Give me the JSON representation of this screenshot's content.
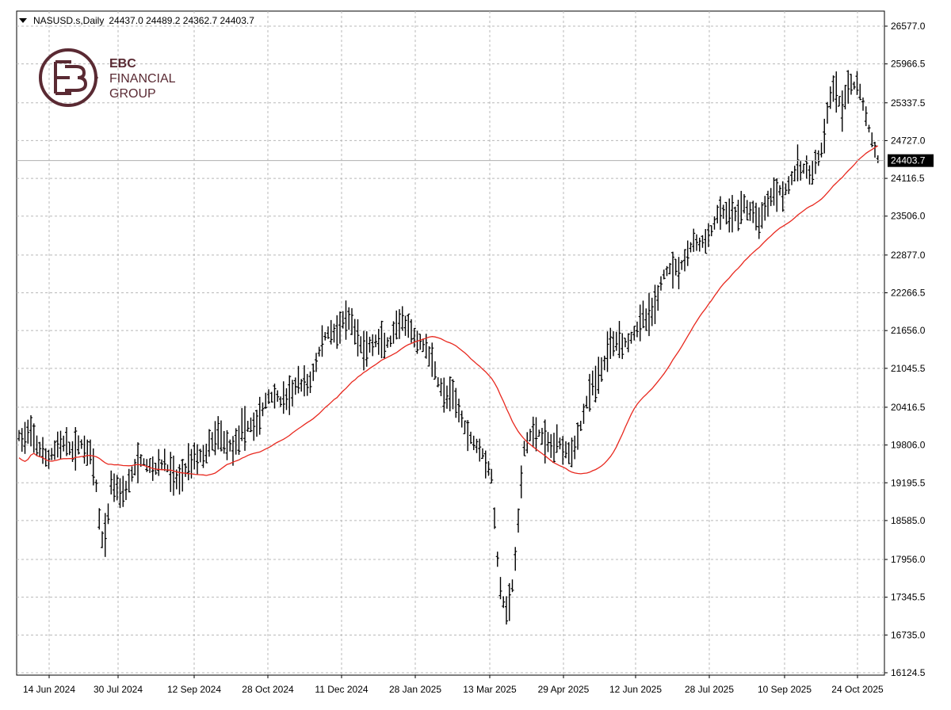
{
  "header": {
    "symbol": "NASUSD.s,Daily",
    "ohlc": "24437.0 24489.2 24362.7 24403.7"
  },
  "logo": {
    "line1": "EBC",
    "line2": "FINANCIAL",
    "line3": "GROUP",
    "color": "#5a2a33"
  },
  "colors": {
    "bars": "#000000",
    "moving_average": "#e8281e",
    "grid": "#b8b8b8",
    "price_line": "#b0b0b0",
    "price_tag_bg": "#000000",
    "price_tag_text": "#ffffff"
  },
  "chart_data": {
    "type": "ohlc",
    "symbol": "NASUSD.s",
    "timeframe": "Daily",
    "current_price": "24403.7",
    "ylim": [
      16124.5,
      26577.0
    ],
    "y_ticks": [
      "26577.0",
      "25966.5",
      "25337.5",
      "24727.0",
      "24116.5",
      "23506.0",
      "22877.0",
      "22266.5",
      "21656.0",
      "21045.5",
      "20416.5",
      "19806.0",
      "19195.5",
      "18585.0",
      "17956.0",
      "17345.5",
      "16735.0",
      "16124.5"
    ],
    "x_ticks": [
      "14 Jun 2024",
      "30 Jul 2024",
      "12 Sep 2024",
      "28 Oct 2024",
      "11 Dec 2024",
      "28 Jan 2025",
      "13 Mar 2025",
      "29 Apr 2025",
      "12 Jun 2025",
      "28 Jul 2025",
      "10 Sep 2025",
      "24 Oct 2025"
    ],
    "grid": true,
    "close_keypoints": [
      [
        "14 Jun 2024",
        19850
      ],
      [
        "30 Jul 2024",
        19250
      ],
      [
        "12 Sep 2024",
        19550
      ],
      [
        "28 Oct 2024",
        20350
      ],
      [
        "11 Dec 2024",
        21600
      ],
      [
        "28 Jan 2025",
        21500
      ],
      [
        "13 Mar 2025",
        19500
      ],
      [
        "29 Apr 2025",
        19900
      ],
      [
        "12 Jun 2025",
        21800
      ],
      [
        "28 Jul 2025",
        23300
      ],
      [
        "10 Sep 2025",
        23900
      ],
      [
        "24 Oct 2025",
        25400
      ],
      [
        "last bar",
        24403.7
      ]
    ],
    "series": [
      {
        "name": "",
        "kind": "ohlc-bars"
      },
      {
        "name": "",
        "kind": "moving-average-line"
      }
    ]
  }
}
